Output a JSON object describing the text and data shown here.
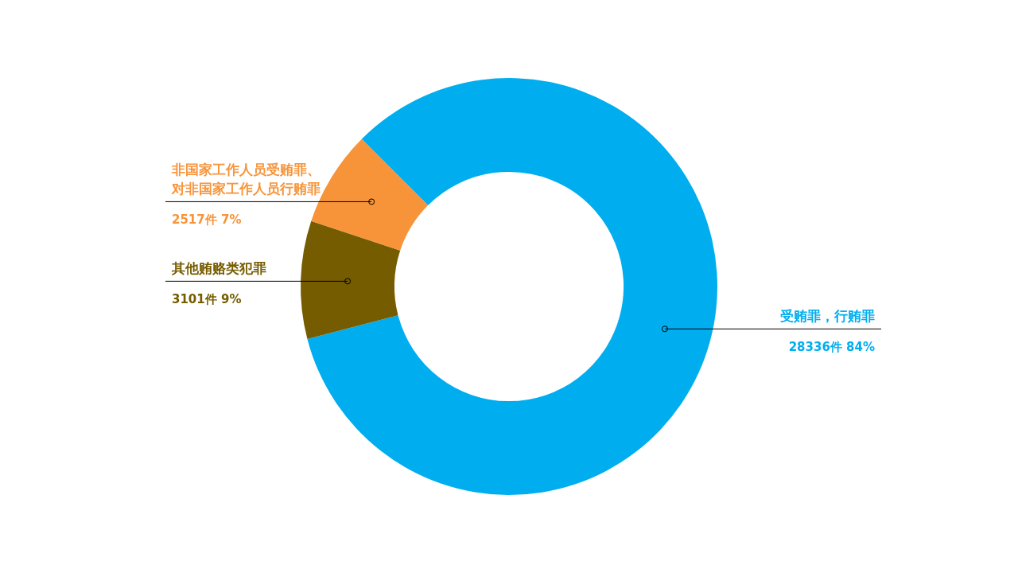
{
  "chart_data": {
    "type": "donut",
    "categories": [
      "受贿罪，行贿罪",
      "其他贿赂类犯罪",
      "非国家工作人员受贿罪、对非国家工作人员行贿罪"
    ],
    "values": [
      28336,
      3101,
      2517
    ],
    "value_labels": [
      "28336件 84%",
      "3101件 9%",
      "2517件 7%"
    ],
    "colors": [
      "#00aeef",
      "#755c00",
      "#f7943a"
    ]
  }
}
